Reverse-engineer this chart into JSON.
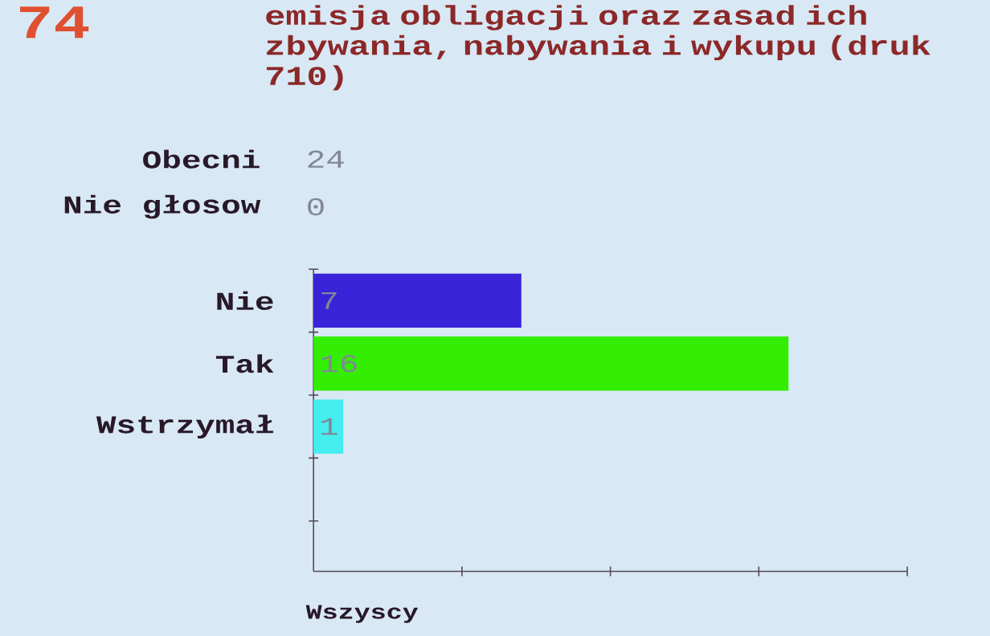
{
  "chart_data": {
    "type": "bar",
    "orientation": "horizontal",
    "title": "74",
    "subtitle": "emisja obligacji oraz zasad ich zbywania, nabywania i wykupu (druk 710)",
    "annotations": [
      "Obecni",
      "24",
      "Nie głosow",
      "0",
      "Wszyscy"
    ],
    "categories": [
      "Nie",
      "Tak",
      "Wstrzymał"
    ],
    "values": [
      7,
      16,
      1
    ],
    "colors": [
      "#3a22d8",
      "#33ee00",
      "#44eeee"
    ],
    "data_labels": true,
    "tick_labels": "y"
  }
}
